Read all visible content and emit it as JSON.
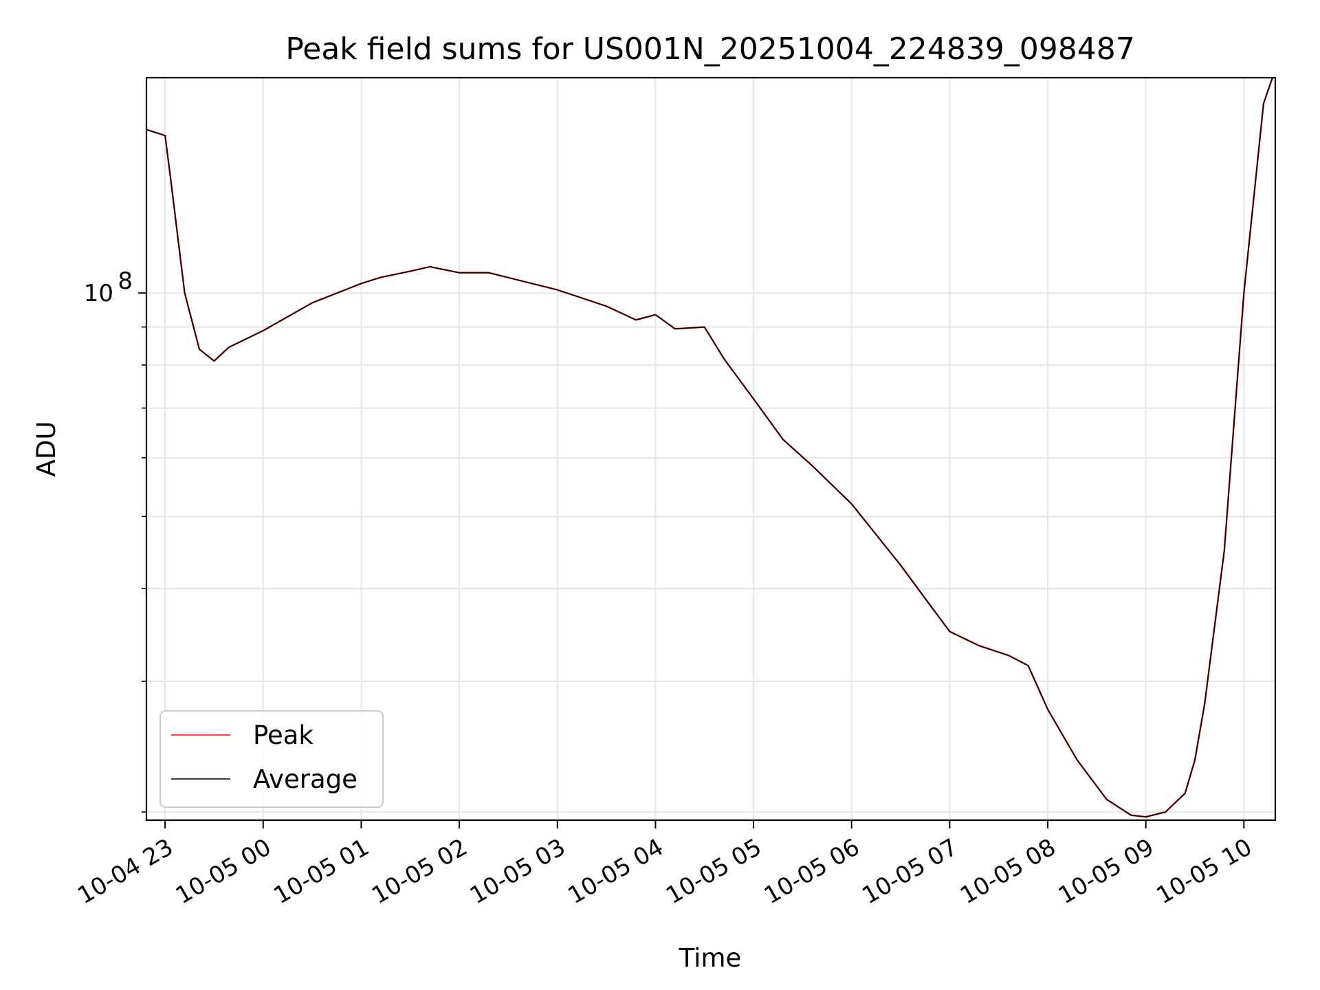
{
  "chart_data": {
    "type": "line",
    "title": "Peak field sums for US001N_20251004_224839_098487",
    "xlabel": "Time",
    "ylabel": "ADU",
    "yscale": "log",
    "ylim": [
      19500000,
      195000000
    ],
    "xlim_hours": [
      -0.19,
      11.32
    ],
    "x_ticks": [
      {
        "label": "10-04 23",
        "h": 0
      },
      {
        "label": "10-05 00",
        "h": 1
      },
      {
        "label": "10-05 01",
        "h": 2
      },
      {
        "label": "10-05 02",
        "h": 3
      },
      {
        "label": "10-05 03",
        "h": 4
      },
      {
        "label": "10-05 04",
        "h": 5
      },
      {
        "label": "10-05 05",
        "h": 6
      },
      {
        "label": "10-05 06",
        "h": 7
      },
      {
        "label": "10-05 07",
        "h": 8
      },
      {
        "label": "10-05 08",
        "h": 9
      },
      {
        "label": "10-05 09",
        "h": 10
      },
      {
        "label": "10-05 10",
        "h": 11
      }
    ],
    "y_major_tick": {
      "base": "10",
      "exp": "8",
      "value": 100000000
    },
    "y_minor_ticks": [
      20000000,
      30000000,
      40000000,
      50000000,
      60000000,
      70000000,
      80000000,
      90000000,
      200000000
    ],
    "legend": {
      "position": "lower-left",
      "entries": [
        "Peak",
        "Average"
      ]
    },
    "series": [
      {
        "name": "Peak",
        "color": "#ff0000",
        "x_hours": [
          -0.19,
          0.0,
          0.05,
          0.2,
          0.35,
          0.5,
          0.65,
          1.0,
          1.5,
          2.0,
          2.2,
          2.5,
          2.7,
          3.0,
          3.3,
          4.0,
          4.5,
          4.8,
          5.0,
          5.2,
          5.5,
          5.7,
          6.0,
          6.3,
          6.6,
          7.0,
          7.5,
          7.8,
          8.0,
          8.3,
          8.6,
          8.8,
          9.0,
          9.3,
          9.6,
          9.85,
          10.0,
          10.2,
          10.4,
          10.5,
          10.6,
          10.8,
          11.0,
          11.2,
          11.32
        ],
        "values": [
          166000000,
          163000000,
          145000000,
          100000000,
          84000000,
          81000000,
          84500000,
          89000000,
          97000000,
          103000000,
          105000000,
          107000000,
          108500000,
          106500000,
          106500000,
          101000000,
          96000000,
          92000000,
          93500000,
          89500000,
          90000000,
          81500000,
          72000000,
          63500000,
          58500000,
          52000000,
          43000000,
          38000000,
          35000000,
          33500000,
          32500000,
          31500000,
          27500000,
          23500000,
          20800000,
          19800000,
          19700000,
          20000000,
          21200000,
          23500000,
          28000000,
          45000000,
          100000000,
          180000000,
          200000000
        ]
      },
      {
        "name": "Average",
        "color": "#000000",
        "x_hours": [
          -0.19,
          0.0,
          0.05,
          0.2,
          0.35,
          0.5,
          0.65,
          1.0,
          1.5,
          2.0,
          2.2,
          2.5,
          2.7,
          3.0,
          3.3,
          4.0,
          4.5,
          4.8,
          5.0,
          5.2,
          5.5,
          5.7,
          6.0,
          6.3,
          6.6,
          7.0,
          7.5,
          7.8,
          8.0,
          8.3,
          8.6,
          8.8,
          9.0,
          9.3,
          9.6,
          9.85,
          10.0,
          10.2,
          10.4,
          10.5,
          10.6,
          10.8,
          11.0,
          11.2,
          11.32
        ],
        "values": [
          166000000,
          163000000,
          145000000,
          100000000,
          84000000,
          81000000,
          84500000,
          89000000,
          97000000,
          103000000,
          105000000,
          107000000,
          108500000,
          106500000,
          106500000,
          101000000,
          96000000,
          92000000,
          93500000,
          89500000,
          90000000,
          81500000,
          72000000,
          63500000,
          58500000,
          52000000,
          43000000,
          38000000,
          35000000,
          33500000,
          32500000,
          31500000,
          27500000,
          23500000,
          20800000,
          19800000,
          19700000,
          20000000,
          21200000,
          23500000,
          28000000,
          45000000,
          100000000,
          180000000,
          200000000
        ]
      }
    ]
  }
}
